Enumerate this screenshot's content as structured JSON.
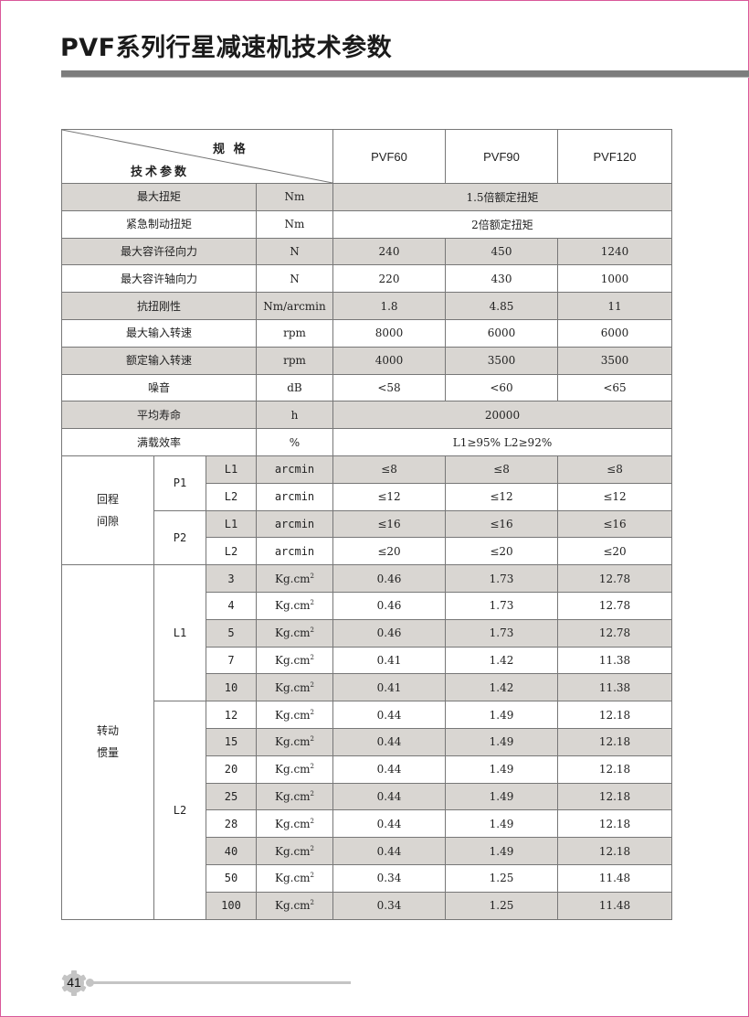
{
  "title": "PVF系列行星减速机技术参数",
  "page_number": "41",
  "header": {
    "spec_label": "规 格",
    "param_label": "技术参数",
    "models": [
      "PVF60",
      "PVF90",
      "PVF120"
    ]
  },
  "colors": {
    "shade": "#d9d6d2",
    "border_accent": "#d9589a",
    "title_bar": "#7d7d7d"
  },
  "simple_rows": [
    {
      "label": "最大扭矩",
      "unit": "Nm",
      "merged": "1.5倍额定扭矩"
    },
    {
      "label": "紧急制动扭矩",
      "unit": "Nm",
      "merged": "2倍额定扭矩"
    },
    {
      "label": "最大容许径向力",
      "unit": "N",
      "values": [
        "240",
        "450",
        "1240"
      ]
    },
    {
      "label": "最大容许轴向力",
      "unit": "N",
      "values": [
        "220",
        "430",
        "1000"
      ]
    },
    {
      "label": "抗扭刚性",
      "unit": "Nm/arcmin",
      "values": [
        "1.8",
        "4.85",
        "11"
      ]
    },
    {
      "label": "最大输入转速",
      "unit": "rpm",
      "values": [
        "8000",
        "6000",
        "6000"
      ]
    },
    {
      "label": "额定输入转速",
      "unit": "rpm",
      "values": [
        "4000",
        "3500",
        "3500"
      ]
    },
    {
      "label": "噪音",
      "unit": "dB",
      "values": [
        "<58",
        "<60",
        "<65"
      ]
    },
    {
      "label": "平均寿命",
      "unit": "h",
      "merged": "20000"
    },
    {
      "label": "满载效率",
      "unit": "%",
      "merged": "L1≥95%   L2≥92%"
    }
  ],
  "backlash": {
    "label": "回程\n间隙",
    "groups": [
      {
        "precision": "P1",
        "rows": [
          {
            "stage": "L1",
            "unit": "arcmin",
            "values": [
              "≤8",
              "≤8",
              "≤8"
            ]
          },
          {
            "stage": "L2",
            "unit": "arcmin",
            "values": [
              "≤12",
              "≤12",
              "≤12"
            ]
          }
        ]
      },
      {
        "precision": "P2",
        "rows": [
          {
            "stage": "L1",
            "unit": "arcmin",
            "values": [
              "≤16",
              "≤16",
              "≤16"
            ]
          },
          {
            "stage": "L2",
            "unit": "arcmin",
            "values": [
              "≤20",
              "≤20",
              "≤20"
            ]
          }
        ]
      }
    ]
  },
  "inertia": {
    "label": "转动\n惯量",
    "unit": "Kg.cm",
    "unit_sup": "2",
    "groups": [
      {
        "stage": "L1",
        "rows": [
          {
            "ratio": "3",
            "values": [
              "0.46",
              "1.73",
              "12.78"
            ]
          },
          {
            "ratio": "4",
            "values": [
              "0.46",
              "1.73",
              "12.78"
            ]
          },
          {
            "ratio": "5",
            "values": [
              "0.46",
              "1.73",
              "12.78"
            ]
          },
          {
            "ratio": "7",
            "values": [
              "0.41",
              "1.42",
              "11.38"
            ]
          },
          {
            "ratio": "10",
            "values": [
              "0.41",
              "1.42",
              "11.38"
            ]
          }
        ]
      },
      {
        "stage": "L2",
        "rows": [
          {
            "ratio": "12",
            "values": [
              "0.44",
              "1.49",
              "12.18"
            ]
          },
          {
            "ratio": "15",
            "values": [
              "0.44",
              "1.49",
              "12.18"
            ]
          },
          {
            "ratio": "20",
            "values": [
              "0.44",
              "1.49",
              "12.18"
            ]
          },
          {
            "ratio": "25",
            "values": [
              "0.44",
              "1.49",
              "12.18"
            ]
          },
          {
            "ratio": "28",
            "values": [
              "0.44",
              "1.49",
              "12.18"
            ]
          },
          {
            "ratio": "40",
            "values": [
              "0.44",
              "1.49",
              "12.18"
            ]
          },
          {
            "ratio": "50",
            "values": [
              "0.34",
              "1.25",
              "11.48"
            ]
          },
          {
            "ratio": "100",
            "values": [
              "0.34",
              "1.25",
              "11.48"
            ]
          }
        ]
      }
    ]
  }
}
